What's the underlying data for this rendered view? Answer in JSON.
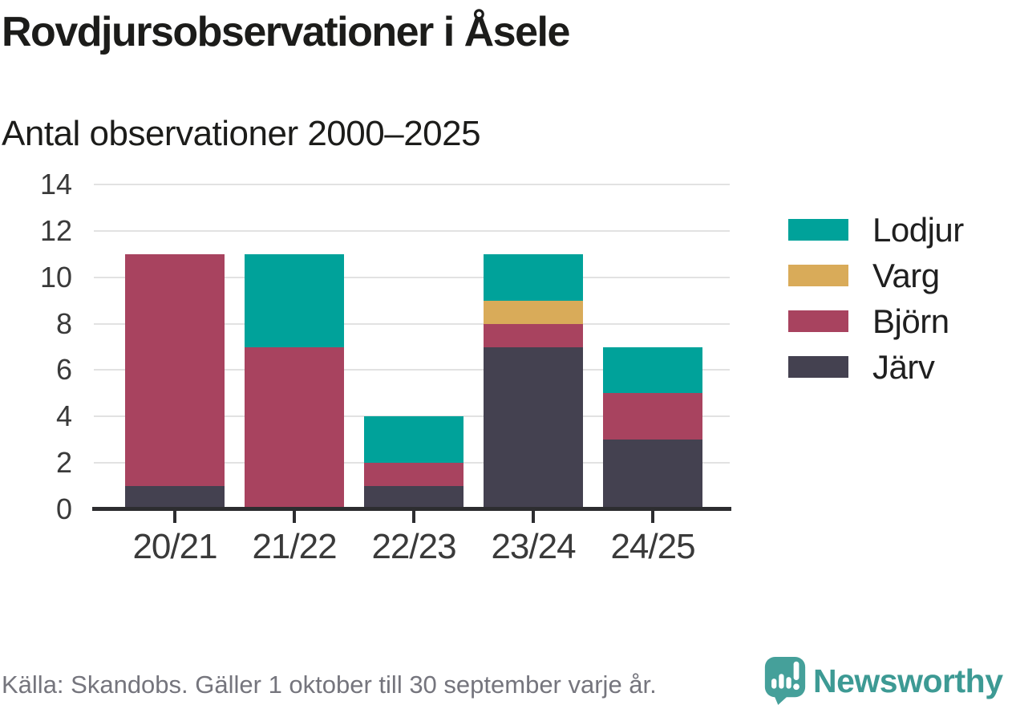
{
  "header": {
    "title": "Rovdjursobservationer i Åsele",
    "subtitle": "Antal observationer 2000–2025"
  },
  "chart_data": {
    "type": "bar",
    "stacked": true,
    "title": "Rovdjursobservationer i Åsele",
    "subtitle": "Antal observationer 2000–2025",
    "categories": [
      "20/21",
      "21/22",
      "22/23",
      "23/24",
      "24/25"
    ],
    "series": [
      {
        "name": "Järv",
        "color": "#444150",
        "values": [
          1,
          0,
          1,
          7,
          3
        ]
      },
      {
        "name": "Björn",
        "color": "#a8435f",
        "values": [
          10,
          7,
          1,
          1,
          2
        ]
      },
      {
        "name": "Varg",
        "color": "#d9ab59",
        "values": [
          0,
          0,
          0,
          1,
          0
        ]
      },
      {
        "name": "Lodjur",
        "color": "#00a29a",
        "values": [
          0,
          4,
          2,
          2,
          2
        ]
      }
    ],
    "totals": [
      11,
      11,
      4,
      11,
      7
    ],
    "xlabel": "",
    "ylabel": "",
    "ylim": [
      0,
      14
    ],
    "yticks": [
      0,
      2,
      4,
      6,
      8,
      10,
      12,
      14
    ],
    "grid": "horizontal",
    "legend_position": "right",
    "legend_order": [
      "Lodjur",
      "Varg",
      "Björn",
      "Järv"
    ]
  },
  "footer": {
    "source": "Källa: Skandobs. Gäller 1 oktober till 30 september varje år.",
    "brand": "Newsworthy"
  },
  "icons": {
    "logo": "newsworthy-speech-bubble-barchart-icon"
  },
  "colors": {
    "accent_teal": "#00a29a",
    "accent_gold": "#d9ab59",
    "accent_maroon": "#a8435f",
    "accent_dark": "#444150",
    "brand_teal": "#3d9a94",
    "grid": "#e2e2e2",
    "axis": "#2d2d30",
    "text": "#1c1c1a",
    "muted_text": "#75757d"
  }
}
